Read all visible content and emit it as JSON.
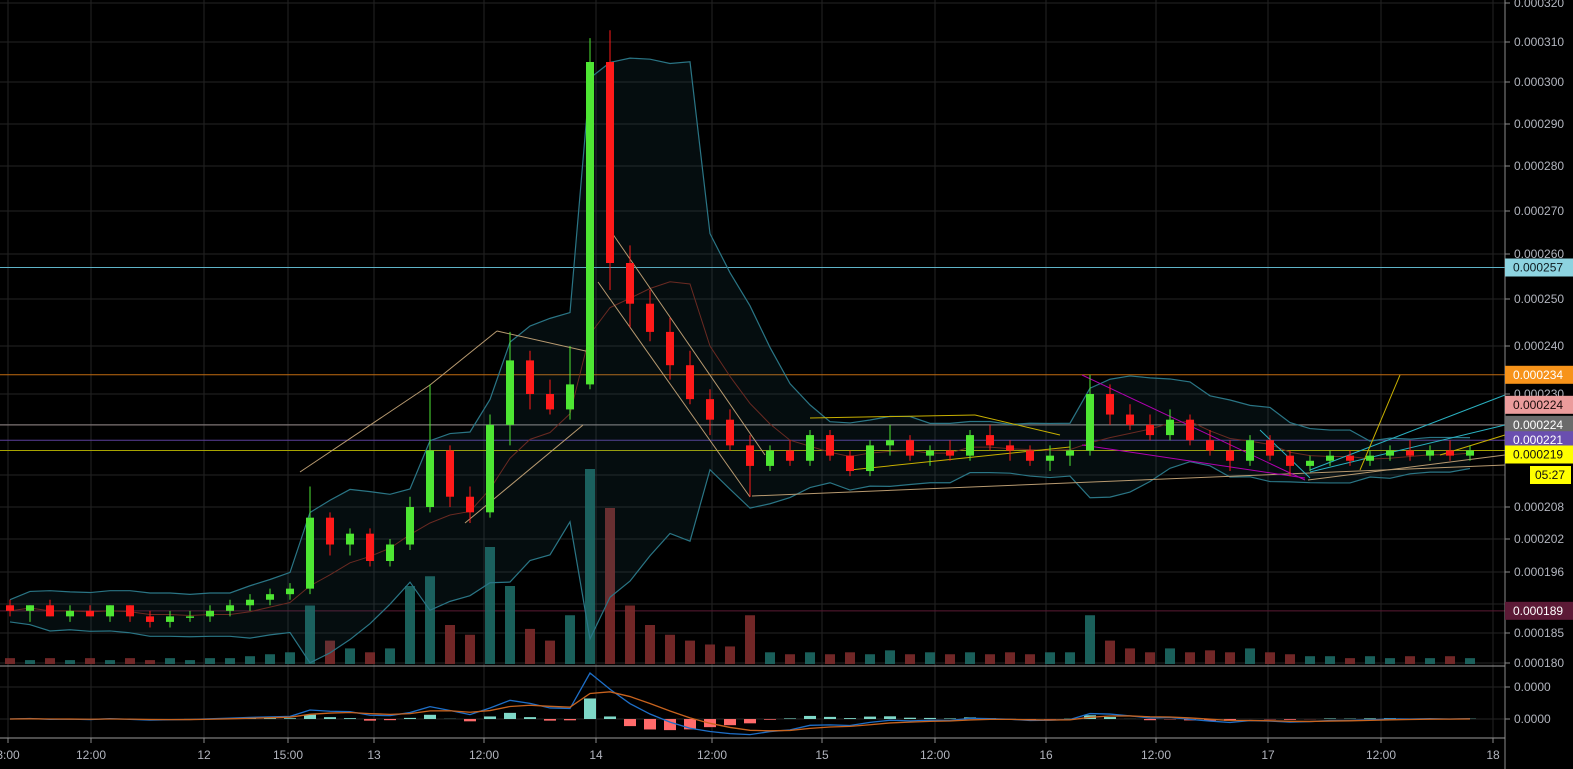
{
  "chart_data": {
    "type": "candlestick",
    "title": "",
    "price_axis": {
      "scale": "non-linear (log-like)",
      "ticks": [
        "0.000320",
        "0.000310",
        "0.000300",
        "0.000290",
        "0.000280",
        "0.000270",
        "0.000260",
        "0.000250",
        "0.000240",
        "0.000230",
        "0.000208",
        "0.000202",
        "0.000196",
        "0.000185",
        "0.000180"
      ]
    },
    "time_axis": {
      "ticks": [
        "3:00",
        "12:00",
        "12",
        "15:00",
        "13",
        "12:00",
        "14",
        "12:00",
        "15",
        "12:00",
        "16",
        "12:00",
        "17",
        "12:00",
        "18"
      ]
    },
    "grid": true,
    "colors": {
      "up": "#4ee633",
      "down": "#ff1a1a",
      "volume_up": "#1d6964",
      "volume_down": "#7d2b2b",
      "bands": "#2a7585",
      "macd": "#1e6fc8",
      "signal": "#c8631e"
    },
    "candles_ohlc": [
      [
        0.00019,
        0.000191,
        0.000188,
        0.000189
      ],
      [
        0.000189,
        0.00019,
        0.000187,
        0.00019
      ],
      [
        0.00019,
        0.000191,
        0.000188,
        0.000188
      ],
      [
        0.000188,
        0.00019,
        0.000187,
        0.000189
      ],
      [
        0.000189,
        0.00019,
        0.000188,
        0.000188
      ],
      [
        0.000188,
        0.00019,
        0.000187,
        0.00019
      ],
      [
        0.00019,
        0.00019,
        0.000187,
        0.000188
      ],
      [
        0.000188,
        0.000189,
        0.000186,
        0.000187
      ],
      [
        0.000187,
        0.000189,
        0.000186,
        0.000188
      ],
      [
        0.000188,
        0.000189,
        0.000187,
        0.000188
      ],
      [
        0.000188,
        0.00019,
        0.000187,
        0.000189
      ],
      [
        0.000189,
        0.000191,
        0.000188,
        0.00019
      ],
      [
        0.00019,
        0.000192,
        0.000189,
        0.000191
      ],
      [
        0.000191,
        0.000193,
        0.00019,
        0.000192
      ],
      [
        0.000192,
        0.000194,
        0.000191,
        0.000193
      ],
      [
        0.000193,
        0.000212,
        0.000192,
        0.000206
      ],
      [
        0.000206,
        0.000207,
        0.000199,
        0.000201
      ],
      [
        0.000201,
        0.000204,
        0.000199,
        0.000203
      ],
      [
        0.000203,
        0.000204,
        0.000197,
        0.000198
      ],
      [
        0.000198,
        0.000202,
        0.000197,
        0.000201
      ],
      [
        0.000201,
        0.00021,
        0.0002,
        0.000208
      ],
      [
        0.000208,
        0.000232,
        0.000207,
        0.000219
      ],
      [
        0.000219,
        0.00022,
        0.000208,
        0.00021
      ],
      [
        0.00021,
        0.000212,
        0.000205,
        0.000207
      ],
      [
        0.000207,
        0.000226,
        0.000206,
        0.000224
      ],
      [
        0.000224,
        0.000243,
        0.00022,
        0.000237
      ],
      [
        0.000237,
        0.000239,
        0.000227,
        0.00023
      ],
      [
        0.00023,
        0.000233,
        0.000226,
        0.000227
      ],
      [
        0.000227,
        0.00024,
        0.000225,
        0.000232
      ],
      [
        0.000232,
        0.000311,
        0.000231,
        0.000305
      ],
      [
        0.000305,
        0.000313,
        0.000252,
        0.000258
      ],
      [
        0.000258,
        0.000262,
        0.000244,
        0.000249
      ],
      [
        0.000249,
        0.000252,
        0.000241,
        0.000243
      ],
      [
        0.000243,
        0.000246,
        0.000233,
        0.000236
      ],
      [
        0.000236,
        0.000239,
        0.000228,
        0.000229
      ],
      [
        0.000229,
        0.000231,
        0.000222,
        0.000225
      ],
      [
        0.000225,
        0.000227,
        0.000219,
        0.00022
      ],
      [
        0.00022,
        0.000222,
        0.00021,
        0.000216
      ],
      [
        0.000216,
        0.00022,
        0.000215,
        0.000219
      ],
      [
        0.000219,
        0.000221,
        0.000216,
        0.000217
      ],
      [
        0.000217,
        0.000223,
        0.000216,
        0.000222
      ],
      [
        0.000222,
        0.000223,
        0.000217,
        0.000218
      ],
      [
        0.000218,
        0.000219,
        0.000214,
        0.000215
      ],
      [
        0.000215,
        0.000221,
        0.000214,
        0.00022
      ],
      [
        0.00022,
        0.000224,
        0.000218,
        0.000221
      ],
      [
        0.000221,
        0.000222,
        0.000217,
        0.000218
      ],
      [
        0.000218,
        0.00022,
        0.000216,
        0.000219
      ],
      [
        0.000219,
        0.000221,
        0.000217,
        0.000218
      ],
      [
        0.000218,
        0.000223,
        0.000217,
        0.000222
      ],
      [
        0.000222,
        0.000224,
        0.000219,
        0.00022
      ],
      [
        0.00022,
        0.000221,
        0.000217,
        0.000219
      ],
      [
        0.000219,
        0.00022,
        0.000216,
        0.000217
      ],
      [
        0.000217,
        0.00022,
        0.000215,
        0.000218
      ],
      [
        0.000218,
        0.000221,
        0.000216,
        0.000219
      ],
      [
        0.000219,
        0.000234,
        0.000218,
        0.00023
      ],
      [
        0.00023,
        0.000232,
        0.000224,
        0.000226
      ],
      [
        0.000226,
        0.000228,
        0.000223,
        0.000224
      ],
      [
        0.000224,
        0.000226,
        0.000221,
        0.000222
      ],
      [
        0.000222,
        0.000227,
        0.000221,
        0.000225
      ],
      [
        0.000225,
        0.000226,
        0.00022,
        0.000221
      ],
      [
        0.000221,
        0.000223,
        0.000218,
        0.000219
      ],
      [
        0.000219,
        0.000221,
        0.000215,
        0.000217
      ],
      [
        0.000217,
        0.000222,
        0.000216,
        0.000221
      ],
      [
        0.000221,
        0.000222,
        0.000217,
        0.000218
      ],
      [
        0.000218,
        0.000219,
        0.000214,
        0.000216
      ],
      [
        0.000216,
        0.000218,
        0.000215,
        0.000217
      ],
      [
        0.000217,
        0.000219,
        0.000216,
        0.000218
      ],
      [
        0.000218,
        0.000219,
        0.000216,
        0.000217
      ],
      [
        0.000217,
        0.000219,
        0.000216,
        0.000218
      ],
      [
        0.000218,
        0.00022,
        0.000217,
        0.000219
      ],
      [
        0.000219,
        0.000221,
        0.000217,
        0.000218
      ],
      [
        0.000218,
        0.00022,
        0.000217,
        0.000219
      ],
      [
        0.000219,
        0.000221,
        0.000217,
        0.000218
      ],
      [
        0.000218,
        0.00022,
        0.000217,
        0.000219
      ]
    ],
    "volume_relative": [
      3,
      2,
      3,
      2,
      3,
      2,
      3,
      2,
      3,
      2,
      3,
      3,
      4,
      5,
      6,
      30,
      12,
      8,
      6,
      8,
      40,
      45,
      20,
      15,
      60,
      40,
      18,
      12,
      25,
      100,
      80,
      30,
      20,
      15,
      12,
      10,
      9,
      25,
      6,
      5,
      6,
      5,
      6,
      5,
      7,
      5,
      6,
      5,
      6,
      5,
      6,
      5,
      6,
      6,
      25,
      12,
      8,
      6,
      8,
      6,
      7,
      6,
      8,
      6,
      5,
      4,
      4,
      3,
      4,
      3,
      4,
      3,
      4,
      3
    ],
    "horizontal_levels": [
      {
        "price": "0.000257",
        "line": "#5fb3c8",
        "label_bg": "#8dd3e0",
        "label_fg": "#0d1a1f"
      },
      {
        "price": "0.000234",
        "line": "#c06a10",
        "label_bg": "#f7931a",
        "label_fg": "#ffffff"
      },
      {
        "price": "0.000224",
        "line": "#c98a8a",
        "label_bg": "#eb9c9c",
        "label_fg": "#1a0a0a"
      },
      {
        "price": "0.000224",
        "line": "#777777",
        "label_bg": "#6b6b6b",
        "label_fg": "#ffffff"
      },
      {
        "price": "0.000221",
        "line": "#5a3f9a",
        "label_bg": "#6a4fb0",
        "label_fg": "#ffffff"
      },
      {
        "price": "0.000219",
        "line": "#a7a400",
        "label_bg": "#ffff00",
        "label_fg": "#111111"
      },
      {
        "price": "0.000189",
        "line": "#5a1a33",
        "label_bg": "#5c1a36",
        "label_fg": "#ffffff"
      }
    ],
    "countdown": "05:27",
    "macd_axis_ticks": [
      "0.0000",
      "0.0000"
    ]
  }
}
